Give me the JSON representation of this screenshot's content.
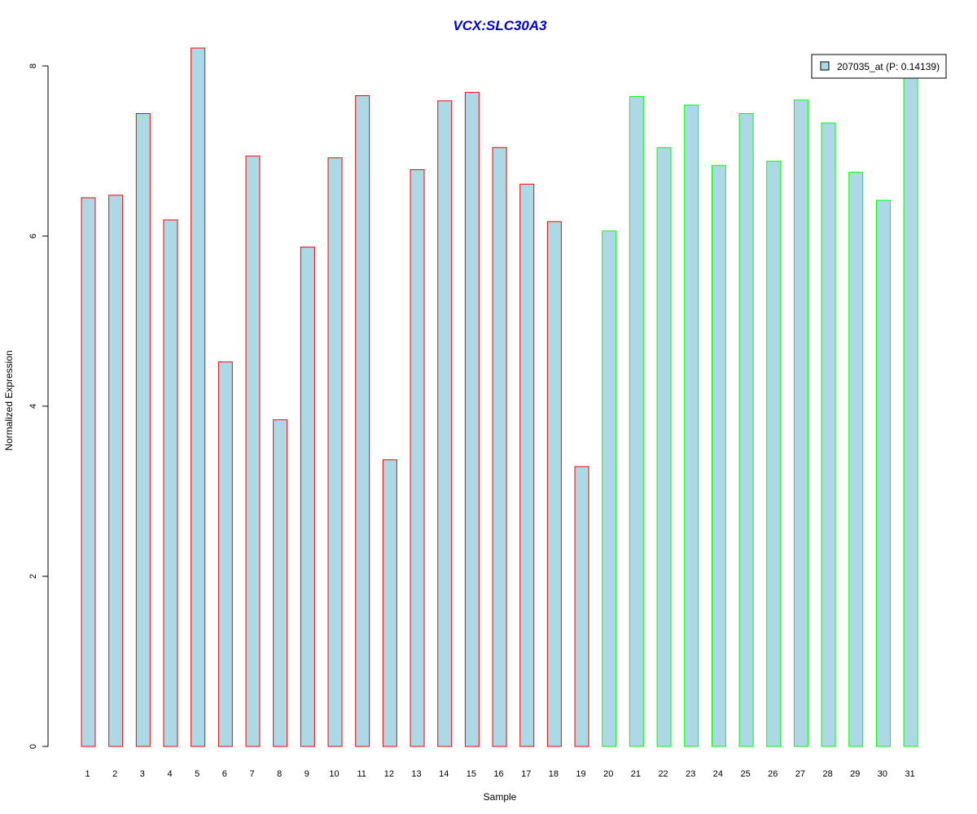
{
  "chart_data": {
    "type": "bar",
    "title": "VCX:SLC30A3",
    "xlabel": "Sample",
    "ylabel": "Normalized Expression",
    "ylim": [
      0,
      8.2
    ],
    "yticks": [
      0,
      2,
      4,
      6,
      8
    ],
    "categories": [
      "1",
      "2",
      "3",
      "4",
      "5",
      "6",
      "7",
      "8",
      "9",
      "10",
      "11",
      "12",
      "13",
      "14",
      "15",
      "16",
      "17",
      "18",
      "19",
      "20",
      "21",
      "22",
      "23",
      "24",
      "25",
      "26",
      "27",
      "28",
      "29",
      "30",
      "31"
    ],
    "series": [
      {
        "name": "207035_at (P: 0.14139)",
        "values": [
          6.45,
          6.48,
          7.44,
          6.19,
          8.21,
          4.52,
          6.94,
          3.84,
          5.87,
          6.92,
          7.65,
          3.37,
          6.78,
          7.59,
          7.69,
          7.04,
          6.61,
          6.17,
          3.29,
          6.06,
          7.64,
          7.04,
          7.54,
          6.83,
          7.44,
          6.88,
          7.6,
          7.33,
          6.75,
          6.42,
          7.9
        ]
      }
    ],
    "bar_fill": "#add8e6",
    "border_colors": [
      "#ff0000",
      "#ff0000",
      "#ff0000",
      "#ff0000",
      "#ff0000",
      "#ff0000",
      "#ff0000",
      "#ff0000",
      "#ff0000",
      "#ff0000",
      "#ff0000",
      "#ff0000",
      "#ff0000",
      "#ff0000",
      "#ff0000",
      "#ff0000",
      "#ff0000",
      "#ff0000",
      "#ff0000",
      "#00ff00",
      "#00ff00",
      "#00ff00",
      "#00ff00",
      "#00ff00",
      "#00ff00",
      "#00ff00",
      "#00ff00",
      "#00ff00",
      "#00ff00",
      "#00ff00",
      "#00ff00"
    ],
    "legend": {
      "placement": "top-right",
      "label": "207035_at (P: 0.14139)"
    },
    "grid": false
  }
}
